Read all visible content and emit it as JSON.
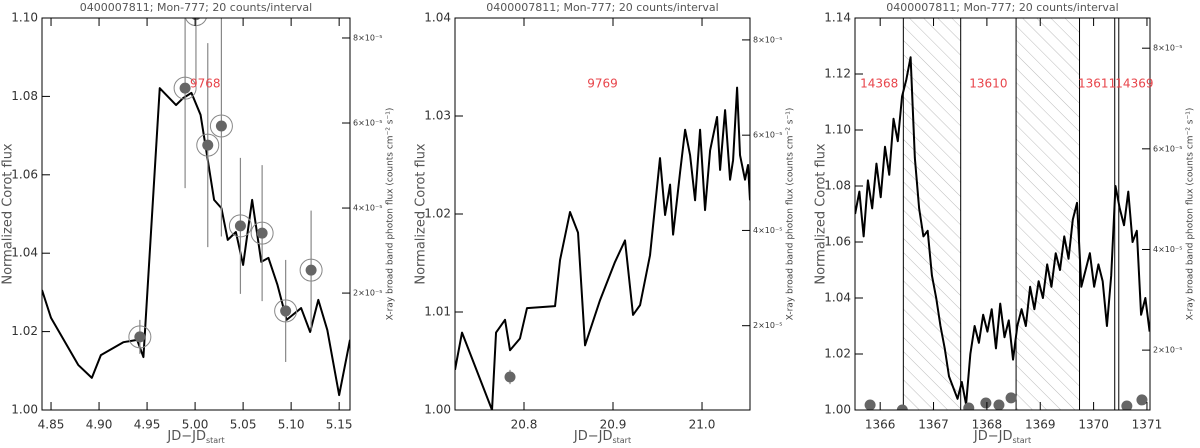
{
  "chart_data": [
    {
      "type": "line",
      "title": "0400007811; Mon-777; 20 counts/interval",
      "xlabel": "JD−JD",
      "xlabel_subscript": "start",
      "ylabel": "Normalized Corot flux",
      "y2label": "X-ray broad band photon flux (counts cm⁻² s⁻¹)",
      "annotations": [
        "9768"
      ],
      "xlim": [
        4.8406,
        5.1613
      ],
      "xticks": [
        4.85,
        {
          "value": 4.9,
          "label": "4.90"
        },
        4.95,
        {
          "value": 5,
          "label": "5.00"
        },
        5.05,
        {
          "value": 5.1,
          "label": "5.10"
        },
        5.15
      ],
      "ylim": [
        1,
        1.1
      ],
      "yticks": [
        {
          "value": 1,
          "label": "1.00"
        },
        1.02,
        1.04,
        1.06,
        1.08,
        {
          "value": 1.1,
          "label": "1.10"
        }
      ],
      "y2lim": [
        -7.5e-06,
        8.47e-05
      ],
      "y2ticks": [
        {
          "value": 2e-05,
          "label": "2×10⁻⁵"
        },
        {
          "value": 4e-05,
          "label": "4×10⁻⁵"
        },
        {
          "value": 6e-05,
          "label": "6×10⁻⁵"
        },
        {
          "value": 8e-05,
          "label": "8×10⁻⁵"
        }
      ],
      "color": "#000000",
      "x": [
        4.8406,
        4.85,
        4.8783,
        4.8925,
        4.9019,
        4.9255,
        4.9396,
        4.9462,
        4.9632,
        4.9802,
        4.9877,
        4.9962,
        5.0057,
        5.0132,
        5.0198,
        5.0274,
        5.034,
        5.0425,
        5.05,
        5.0594,
        5.0689,
        5.0764,
        5.0858,
        5.0953,
        5.1104,
        5.1198,
        5.1283,
        5.1377,
        5.15,
        5.1613
      ],
      "values": [
        1.0306,
        1.0235,
        1.0115,
        1.0082,
        1.014,
        1.0173,
        1.0179,
        1.0135,
        1.0821,
        1.0778,
        1.0796,
        1.0809,
        1.0753,
        1.0638,
        1.0536,
        1.0515,
        1.0434,
        1.0454,
        1.037,
        1.0536,
        1.0378,
        1.0388,
        1.0319,
        1.023,
        1.026,
        1.0199,
        1.0281,
        1.0204,
        1.0038,
        1.0179
      ],
      "points": {
        "axis": "y2",
        "color": "#666666",
        "ring": true,
        "x": [
          4.9425,
          4.9896,
          5.0009,
          5.0132,
          5.0274,
          5.0472,
          5.0698,
          5.0943,
          5.1208
        ],
        "values": [
          9.7e-06,
          6.82e-05,
          8.55e-05,
          5.48e-05,
          5.93e-05,
          3.58e-05,
          3.41e-05,
          1.58e-05,
          2.54e-05
        ],
        "errors": [
          4e-06,
          2.35e-05,
          1.6e-05,
          2.4e-05,
          2.6e-05,
          1.6e-05,
          1.6e-05,
          1.2e-05,
          1.4e-05
        ]
      }
    },
    {
      "type": "line",
      "title": "0400007811; Mon-777; 20 counts/interval",
      "xlabel": "JD−JD",
      "xlabel_subscript": "start",
      "ylabel": "Normalized Corot flux",
      "y2label": "X-ray broad band photon flux (counts cm⁻² s⁻¹)",
      "annotations": [
        "9769"
      ],
      "xlim": [
        20.7225,
        21.0539
      ],
      "xticks": [
        20.8,
        20.9,
        {
          "value": 21,
          "label": "21.0"
        }
      ],
      "ylim": [
        1,
        1.04
      ],
      "yticks": [
        {
          "value": 1,
          "label": "1.00"
        },
        1.01,
        1.02,
        1.03,
        1.04
      ],
      "y2lim": [
        2.3e-06,
        8.46e-05
      ],
      "y2ticks": [
        {
          "value": 2e-05,
          "label": "2×10⁻⁵"
        },
        {
          "value": 4e-05,
          "label": "4×10⁻⁵"
        },
        {
          "value": 6e-05,
          "label": "6×10⁻⁵"
        },
        {
          "value": 8e-05,
          "label": "8×10⁻⁵"
        }
      ],
      "color": "#000000",
      "x": [
        20.7225,
        20.7304,
        20.7641,
        20.7686,
        20.7787,
        20.7843,
        20.7955,
        20.8034,
        20.8349,
        20.8405,
        20.8517,
        20.8607,
        20.8686,
        20.8854,
        20.9022,
        20.9135,
        20.9225,
        20.9304,
        20.9416,
        20.9528,
        20.9585,
        20.9641,
        20.9675,
        20.9754,
        20.981,
        20.9866,
        20.9922,
        20.9978,
        21.0034,
        21.0091,
        21.0169,
        21.0203,
        21.0259,
        21.0315,
        21.0349,
        21.0394,
        21.0427,
        21.0483,
        21.0517,
        21.0539
      ],
      "values": [
        1.0041,
        1.0079,
        1.0,
        1.0079,
        1.0092,
        1.0061,
        1.0073,
        1.0104,
        1.0106,
        1.0153,
        1.0202,
        1.0181,
        1.0066,
        1.0112,
        1.0151,
        1.0173,
        1.0097,
        1.0107,
        1.0158,
        1.0257,
        1.0199,
        1.023,
        1.0179,
        1.0243,
        1.0286,
        1.026,
        1.0214,
        1.0286,
        1.0204,
        1.0265,
        1.0299,
        1.0245,
        1.0306,
        1.0235,
        1.0255,
        1.0329,
        1.026,
        1.0235,
        1.025,
        1.0214
      ],
      "points": {
        "axis": "y2",
        "color": "#666666",
        "ring": false,
        "x": [
          20.7843
        ],
        "values": [
          9.23e-06
        ],
        "errors": [
          1.5e-06
        ]
      }
    },
    {
      "type": "line",
      "title": "0400007811; Mon-777; 20 counts/interval",
      "xlabel": "JD−JD",
      "xlabel_subscript": "start",
      "ylabel": "Normalized Corot flux",
      "y2label": "X-ray broad band photon flux (counts cm⁻² s⁻¹)",
      "annotations": [
        "14368",
        "13610",
        "13611",
        "14369"
      ],
      "xlim": [
        1365.528,
        1371.057
      ],
      "xticks": [
        1366,
        1367,
        1368,
        1369,
        1370,
        1371
      ],
      "ylim": [
        1,
        1.14
      ],
      "yticks": [
        {
          "value": 1,
          "label": "1.00"
        },
        1.02,
        1.04,
        1.06,
        1.08,
        {
          "value": 1.1,
          "label": "1.10"
        },
        1.12,
        1.14
      ],
      "y2lim": [
        8.1e-06,
        8.6e-05
      ],
      "y2ticks": [
        {
          "value": 2e-05,
          "label": "2×10⁻⁵"
        },
        {
          "value": 4e-05,
          "label": "4×10⁻⁵"
        },
        {
          "value": 6e-05,
          "label": "6×10⁻⁵"
        },
        {
          "value": 8e-05,
          "label": "8×10⁻⁵"
        }
      ],
      "vlines": [
        1366.434,
        1367.509,
        1368.547,
        1369.736,
        1370.396,
        1370.472
      ],
      "shaded": [
        [
          1366.434,
          1367.509
        ],
        [
          1368.547,
          1369.736
        ]
      ],
      "color": "#000000",
      "x": [
        1365.53,
        1365.61,
        1365.69,
        1365.77,
        1365.85,
        1365.93,
        1366.01,
        1366.09,
        1366.17,
        1366.25,
        1366.33,
        1366.41,
        1366.49,
        1366.57,
        1366.65,
        1366.73,
        1366.81,
        1366.89,
        1366.97,
        1367.05,
        1367.13,
        1367.21,
        1367.29,
        1367.37,
        1367.45,
        1367.53,
        1367.61,
        1367.69,
        1367.77,
        1367.85,
        1367.93,
        1368.01,
        1368.09,
        1368.17,
        1368.25,
        1368.33,
        1368.41,
        1368.49,
        1368.57,
        1368.65,
        1368.73,
        1368.81,
        1368.89,
        1368.97,
        1369.05,
        1369.13,
        1369.21,
        1369.29,
        1369.37,
        1369.45,
        1369.53,
        1369.61,
        1369.69,
        1369.77,
        1369.85,
        1369.93,
        1370.01,
        1370.09,
        1370.17,
        1370.25,
        1370.33,
        1370.41,
        1370.49,
        1370.57,
        1370.65,
        1370.73,
        1370.81,
        1370.89,
        1370.97,
        1371.05
      ],
      "values": [
        1.07,
        1.078,
        1.062,
        1.082,
        1.072,
        1.088,
        1.076,
        1.094,
        1.084,
        1.104,
        1.096,
        1.112,
        1.118,
        1.126,
        1.09,
        1.072,
        1.062,
        1.064,
        1.048,
        1.04,
        1.03,
        1.022,
        1.012,
        1.008,
        1.004,
        1.01,
        1.002,
        1.02,
        1.03,
        1.024,
        1.034,
        1.028,
        1.036,
        1.022,
        1.038,
        1.026,
        1.032,
        1.018,
        1.03,
        1.036,
        1.03,
        1.044,
        1.036,
        1.046,
        1.04,
        1.052,
        1.044,
        1.056,
        1.05,
        1.062,
        1.054,
        1.068,
        1.074,
        1.044,
        1.05,
        1.056,
        1.044,
        1.052,
        1.046,
        1.03,
        1.048,
        1.08,
        1.072,
        1.066,
        1.078,
        1.06,
        1.064,
        1.034,
        1.04,
        1.028
      ],
      "points": {
        "axis": "y2",
        "color": "#666666",
        "ring": false,
        "x": [
          1365.811,
          1366.415,
          1367.66,
          1367.981,
          1368.226,
          1368.453,
          1370.623,
          1370.906
        ],
        "values": [
          9.1e-06,
          8.1e-06,
          8.5e-06,
          9.5e-06,
          9.1e-06,
          1.05e-05,
          8.9e-06,
          1.01e-05
        ],
        "errors": [
          0,
          0,
          0,
          0,
          0,
          0,
          0,
          0
        ]
      }
    }
  ]
}
